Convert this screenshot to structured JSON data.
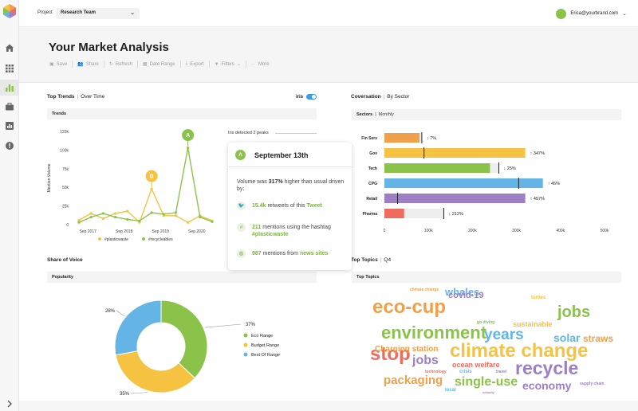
{
  "topbar": {
    "project_label": "Project",
    "project_value": "Research Team",
    "user_email": "Erica@yourbrand.com"
  },
  "header": {
    "title": "Your Market Analysis"
  },
  "toolbar": {
    "save": "Save",
    "share": "Share",
    "refresh": "Refresh",
    "date_range": "Date Range",
    "export": "Export",
    "filters": "Filters",
    "more": "More"
  },
  "trends": {
    "title": "Top Trends",
    "subtitle": "Over Time",
    "toggle_label": "iris",
    "subbar": "Trends",
    "iris_detected": "Iris detected 2 peaks",
    "peak_a": "A",
    "peak_b": "B"
  },
  "tooltip": {
    "badge": "A",
    "date": "September 13th",
    "body_pre": "Volume was ",
    "body_bold": "317%",
    "body_post": " higher than usual driven by:",
    "row1_value": "15.4k",
    "row1_mid": " retweets of this ",
    "row1_link": "Tweet",
    "row2_value": "211",
    "row2_mid": " mentions using the hashtag ",
    "row2_link": "#plasticwaste",
    "row3_value": "987",
    "row3_mid": " mentions from ",
    "row3_link": "news sites"
  },
  "conversation": {
    "title": "Coversation",
    "subtitle": "By Sector",
    "subbar_bold": "Sectors",
    "subbar_light": "Monthly"
  },
  "share": {
    "title": "Share of Voice",
    "subbar": "Popularity"
  },
  "topics": {
    "title": "Top Topics",
    "subtitle": "Q4",
    "subbar": "Top Topics"
  },
  "chart_data": [
    {
      "type": "line",
      "ylabel": "Mention Volume",
      "yticks": [
        "0",
        "25k",
        "50k",
        "75k",
        "100k",
        "125k"
      ],
      "xticks": [
        "Sep 2017",
        "Sep 2018",
        "Sep 2019",
        "Sep 2020"
      ],
      "ylim": [
        0,
        125000
      ],
      "x": [
        0,
        1,
        2,
        3,
        4,
        5,
        6,
        7,
        8,
        9,
        10,
        11
      ],
      "series": [
        {
          "name": "#plasticwaste",
          "color": "#f5c242",
          "values": [
            6000,
            15000,
            8000,
            15000,
            18000,
            3000,
            48000,
            12000,
            12000,
            3000,
            12000,
            5000
          ]
        },
        {
          "name": "#recycleables",
          "color": "#8bc34a",
          "values": [
            3000,
            10000,
            15000,
            10000,
            7000,
            5000,
            16000,
            14000,
            16000,
            103000,
            10000,
            4000
          ]
        }
      ],
      "peaks": [
        {
          "label": "B",
          "x": 6,
          "color": "#f5c242"
        },
        {
          "label": "A",
          "x": 9,
          "color": "#8bc34a"
        }
      ]
    },
    {
      "type": "bar",
      "orientation": "horizontal",
      "categories": [
        "Fin Serv",
        "Gov",
        "Tech",
        "CPG",
        "Retail",
        "Pharma"
      ],
      "values": [
        80000,
        320000,
        240000,
        360000,
        320000,
        45000
      ],
      "markers": [
        85000,
        90000,
        260000,
        305000,
        30000,
        135000
      ],
      "changes": [
        "7%",
        "347%",
        "25%",
        "45%",
        "457%",
        "212%"
      ],
      "directions": [
        "down",
        "up",
        "down",
        "up",
        "up",
        "down"
      ],
      "colors": [
        "#f0a04b",
        "#f5c242",
        "#8bc34a",
        "#64b5e6",
        "#9c7fc4",
        "#ef6b5e"
      ],
      "xticks": [
        "0",
        "100k",
        "200k",
        "300k",
        "400k",
        "500k"
      ],
      "xlim": [
        0,
        500000
      ]
    },
    {
      "type": "pie",
      "categories": [
        "Eco Range",
        "Budget Range",
        "Best Of Range"
      ],
      "values": [
        37,
        35,
        28
      ],
      "labels": [
        "37%",
        "35%",
        "28%"
      ],
      "colors": [
        "#8bc34a",
        "#f5c242",
        "#64b5e6"
      ]
    }
  ],
  "word_cloud": [
    {
      "text": "eco-cup",
      "color": "#f0a04b"
    },
    {
      "text": "stop",
      "color": "#ef6b5e"
    },
    {
      "text": "whales",
      "color": "#64b5e6"
    },
    {
      "text": "climate change",
      "color": "#f0a04b"
    },
    {
      "text": "covid-19",
      "color": "#9c7fc4"
    },
    {
      "text": "turtles",
      "color": "#f5c242"
    },
    {
      "text": "jobs",
      "color": "#8bc34a"
    },
    {
      "text": "go diving",
      "color": "#8bc34a"
    },
    {
      "text": "sustainable",
      "color": "#f5c242"
    },
    {
      "text": "environment",
      "color": "#8bc34a"
    },
    {
      "text": "years",
      "color": "#64b5e6"
    },
    {
      "text": "solar",
      "color": "#64b5e6"
    },
    {
      "text": "straws",
      "color": "#f0a04b"
    },
    {
      "text": "Charging station",
      "color": "#f0a04b"
    },
    {
      "text": "climate change",
      "color": "#f5c242"
    },
    {
      "text": "jobs",
      "color": "#9c7fc4"
    },
    {
      "text": "ocean welfare",
      "color": "#ef6b5e"
    },
    {
      "text": "recycle",
      "color": "#9c7fc4"
    },
    {
      "text": "technology",
      "color": "#ef6b5e"
    },
    {
      "text": "crisis",
      "color": "#64b5e6"
    },
    {
      "text": "travel",
      "color": "#9c7fc4"
    },
    {
      "text": "packaging",
      "color": "#f0a04b"
    },
    {
      "text": "single-use",
      "color": "#8bc34a"
    },
    {
      "text": "economy",
      "color": "#9c7fc4"
    },
    {
      "text": "supply chain",
      "color": "#9c7fc4"
    },
    {
      "text": "local",
      "color": "#64b5e6"
    },
    {
      "text": "velocity",
      "color": "#9c7fc4"
    }
  ]
}
